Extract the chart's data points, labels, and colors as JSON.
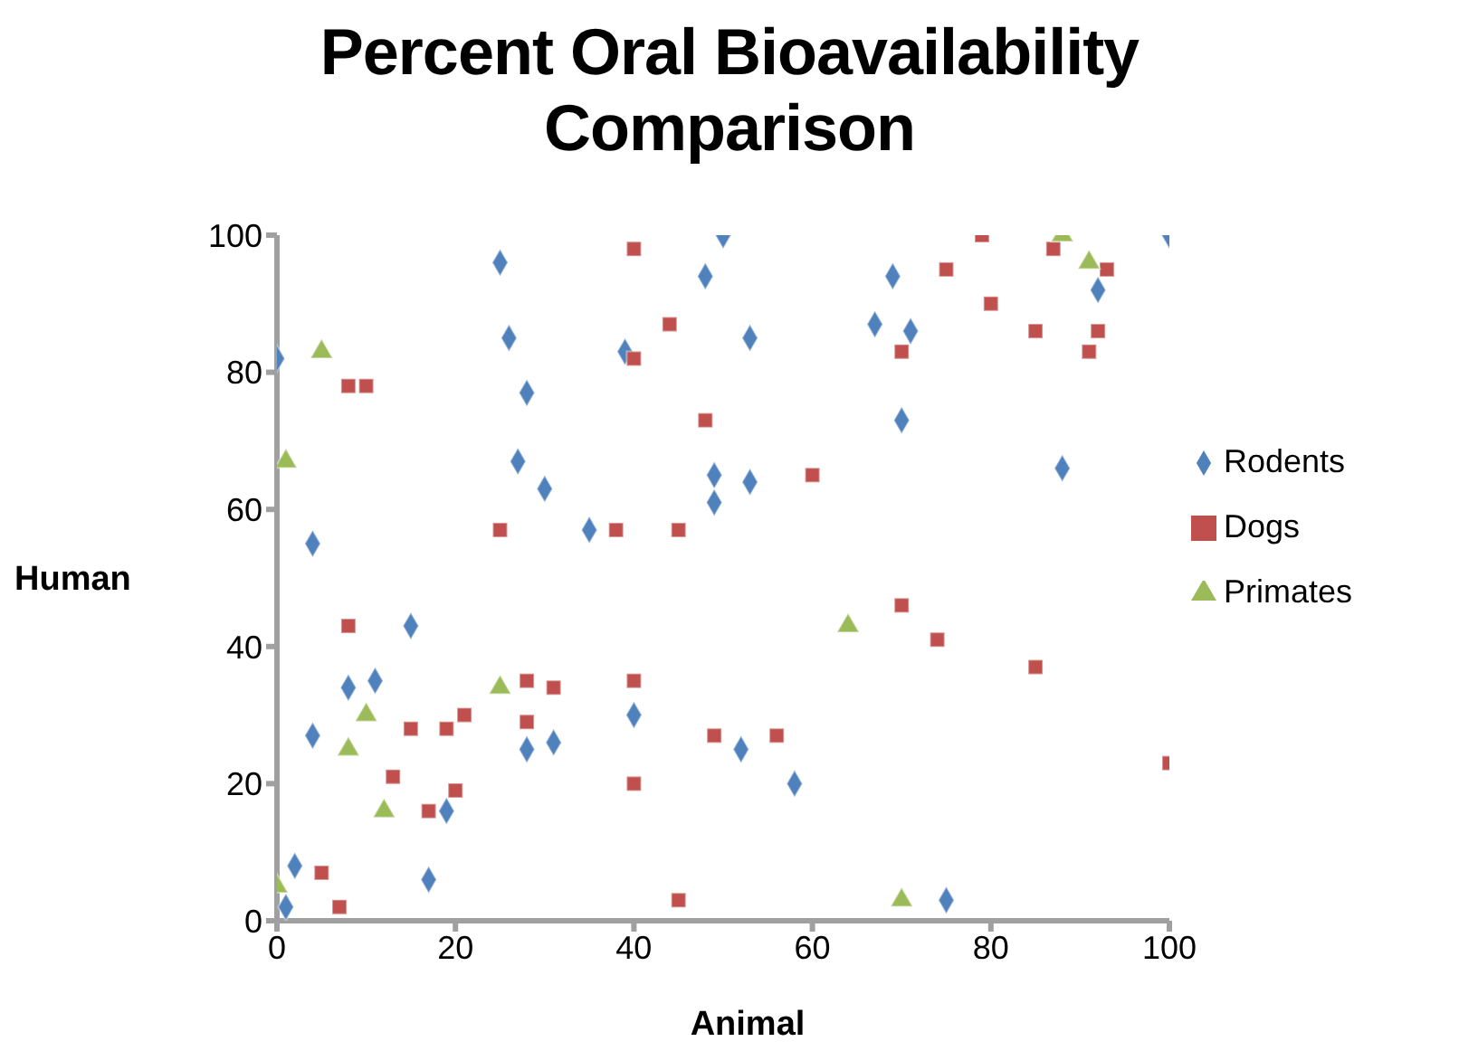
{
  "chart_data": {
    "type": "scatter",
    "title": "Percent Oral Bioavailability Comparison",
    "xlabel": "Animal",
    "ylabel": "Human",
    "xlim": [
      0,
      100
    ],
    "ylim": [
      0,
      100
    ],
    "xticks": [
      0,
      20,
      40,
      60,
      80,
      100
    ],
    "yticks": [
      0,
      20,
      40,
      60,
      80,
      100
    ],
    "grid": false,
    "legend": "right",
    "series": [
      {
        "name": "Rodents",
        "color": "#4f81bd",
        "marker": "diamond",
        "x": [
          0,
          1,
          2,
          4,
          4,
          8,
          11,
          15,
          17,
          19,
          28,
          31,
          40,
          25,
          26,
          28,
          27,
          30,
          35,
          39,
          50,
          48,
          53,
          69,
          67,
          71,
          70,
          88,
          100,
          92,
          49,
          53,
          49,
          52,
          58,
          75
        ],
        "values": [
          82,
          2,
          8,
          55,
          27,
          34,
          35,
          43,
          6,
          16,
          25,
          26,
          30,
          96,
          85,
          77,
          67,
          63,
          57,
          83,
          100,
          94,
          85,
          94,
          87,
          86,
          73,
          66,
          100,
          92,
          65,
          64,
          61,
          25,
          20,
          3
        ]
      },
      {
        "name": "Dogs",
        "color": "#c0504d",
        "marker": "square",
        "x": [
          40,
          44,
          40,
          48,
          8,
          10,
          25,
          38,
          45,
          79,
          75,
          80,
          85,
          91,
          92,
          87,
          93,
          70,
          60,
          70,
          74,
          85,
          100,
          49,
          56,
          45,
          8,
          15,
          19,
          21,
          28,
          31,
          28,
          40,
          40,
          13,
          17,
          20,
          5,
          7
        ],
        "values": [
          98,
          87,
          82,
          73,
          78,
          78,
          57,
          57,
          57,
          100,
          95,
          90,
          86,
          83,
          86,
          98,
          95,
          83,
          65,
          46,
          41,
          37,
          23,
          27,
          27,
          3,
          43,
          28,
          28,
          30,
          35,
          34,
          29,
          35,
          20,
          21,
          16,
          19,
          7,
          2
        ]
      },
      {
        "name": "Primates",
        "color": "#9bbb59",
        "marker": "triangle",
        "x": [
          5,
          1,
          88,
          91,
          64,
          70,
          25,
          10,
          8,
          12,
          0
        ],
        "values": [
          83,
          67,
          100,
          96,
          43,
          3,
          34,
          30,
          25,
          16,
          5
        ]
      }
    ]
  }
}
